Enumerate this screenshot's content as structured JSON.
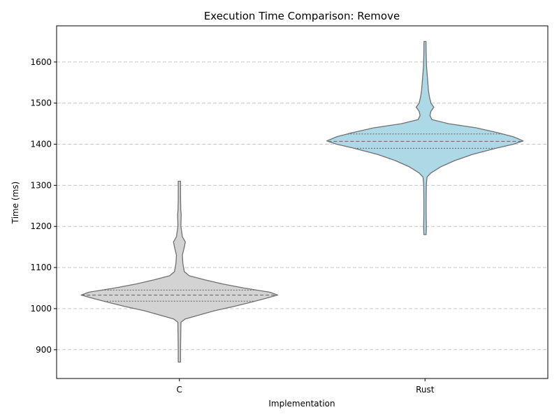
{
  "chart_data": {
    "type": "violin",
    "title": "Execution Time Comparison: Remove",
    "xlabel": "Implementation",
    "ylabel": "Time (ms)",
    "ylim": [
      830,
      1688
    ],
    "yticks": [
      900,
      1000,
      1100,
      1200,
      1300,
      1400,
      1500,
      1600
    ],
    "grid": "y-dashed",
    "categories": [
      "C",
      "Rust"
    ],
    "series": [
      {
        "category": "C",
        "color": "#d3d3d3",
        "min": 870,
        "max": 1310,
        "q1": 1018,
        "median": 1033,
        "q3": 1045,
        "density": [
          [
            870,
            0.012
          ],
          [
            900,
            0.012
          ],
          [
            940,
            0.014
          ],
          [
            967,
            0.016
          ],
          [
            975,
            0.06
          ],
          [
            985,
            0.21
          ],
          [
            995,
            0.36
          ],
          [
            1005,
            0.55
          ],
          [
            1015,
            0.72
          ],
          [
            1025,
            0.88
          ],
          [
            1033,
            1.0
          ],
          [
            1040,
            0.92
          ],
          [
            1050,
            0.66
          ],
          [
            1060,
            0.44
          ],
          [
            1070,
            0.26
          ],
          [
            1080,
            0.1
          ],
          [
            1090,
            0.05
          ],
          [
            1110,
            0.035
          ],
          [
            1130,
            0.03
          ],
          [
            1150,
            0.05
          ],
          [
            1162,
            0.06
          ],
          [
            1175,
            0.03
          ],
          [
            1200,
            0.015
          ],
          [
            1230,
            0.018
          ],
          [
            1240,
            0.014
          ],
          [
            1270,
            0.012
          ],
          [
            1310,
            0.012
          ]
        ]
      },
      {
        "category": "Rust",
        "color": "#add8e6",
        "min": 1180,
        "max": 1650,
        "q1": 1390,
        "median": 1407,
        "q3": 1425,
        "density": [
          [
            1180,
            0.012
          ],
          [
            1200,
            0.014
          ],
          [
            1230,
            0.012
          ],
          [
            1260,
            0.012
          ],
          [
            1300,
            0.013
          ],
          [
            1320,
            0.02
          ],
          [
            1330,
            0.06
          ],
          [
            1345,
            0.16
          ],
          [
            1360,
            0.3
          ],
          [
            1375,
            0.48
          ],
          [
            1390,
            0.72
          ],
          [
            1400,
            0.9
          ],
          [
            1408,
            1.0
          ],
          [
            1418,
            0.9
          ],
          [
            1428,
            0.74
          ],
          [
            1440,
            0.52
          ],
          [
            1450,
            0.24
          ],
          [
            1460,
            0.07
          ],
          [
            1470,
            0.05
          ],
          [
            1480,
            0.06
          ],
          [
            1490,
            0.09
          ],
          [
            1500,
            0.06
          ],
          [
            1515,
            0.045
          ],
          [
            1530,
            0.035
          ],
          [
            1560,
            0.025
          ],
          [
            1590,
            0.015
          ],
          [
            1620,
            0.012
          ],
          [
            1650,
            0.01
          ]
        ]
      }
    ]
  }
}
